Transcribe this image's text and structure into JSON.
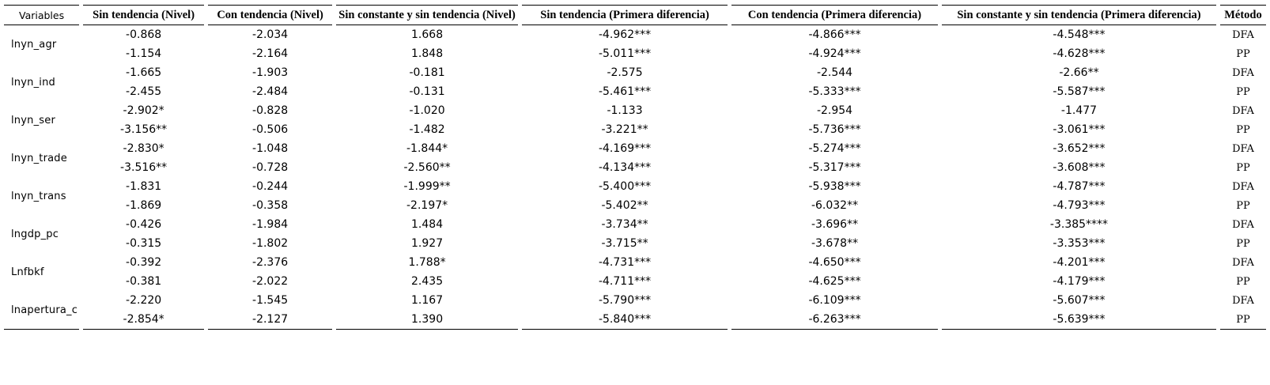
{
  "page": {
    "background_color": "#ffffff",
    "text_color": "#000000"
  },
  "table": {
    "column_headers": [
      "Variables",
      "Sin tendencia (Nivel)",
      "Con tendencia (Nivel)",
      "Sin constante y sin tendencia (Nivel)",
      "Sin tendencia (Primera diferencia)",
      "Con tendencia (Primera diferencia)",
      "Sin constante y sin tendencia (Primera diferencia)",
      "Método"
    ],
    "groups": [
      {
        "variable": "lnyn_agr",
        "rows": [
          {
            "method": "DFA",
            "values": [
              "-0.868",
              "-2.034",
              "1.668",
              "-4.962***",
              "-4.866***",
              "-4.548***"
            ]
          },
          {
            "method": "PP",
            "values": [
              "-1.154",
              "-2.164",
              "1.848",
              "-5.011***",
              "-4.924***",
              "-4.628***"
            ]
          }
        ]
      },
      {
        "variable": "lnyn_ind",
        "rows": [
          {
            "method": "DFA",
            "values": [
              "-1.665",
              "-1.903",
              "-0.181",
              "-2.575",
              "-2.544",
              "-2.66**"
            ]
          },
          {
            "method": "PP",
            "values": [
              "-2.455",
              "-2.484",
              "-0.131",
              "-5.461***",
              "-5.333***",
              "-5.587***"
            ]
          }
        ]
      },
      {
        "variable": "lnyn_ser",
        "rows": [
          {
            "method": "DFA",
            "values": [
              "-2.902*",
              "-0.828",
              "-1.020",
              "-1.133",
              "-2.954",
              "-1.477"
            ]
          },
          {
            "method": "PP",
            "values": [
              "-3.156**",
              "-0.506",
              "-1.482",
              "-3.221**",
              "-5.736***",
              "-3.061***"
            ]
          }
        ]
      },
      {
        "variable": "lnyn_trade",
        "rows": [
          {
            "method": "DFA",
            "values": [
              "-2.830*",
              "-1.048",
              "-1.844*",
              "-4.169***",
              "-5.274***",
              "-3.652***"
            ]
          },
          {
            "method": "PP",
            "values": [
              "-3.516**",
              "-0.728",
              "-2.560**",
              "-4.134***",
              "-5.317***",
              "-3.608***"
            ]
          }
        ]
      },
      {
        "variable": "lnyn_trans",
        "rows": [
          {
            "method": "DFA",
            "values": [
              "-1.831",
              "-0.244",
              "-1.999**",
              "-5.400***",
              "-5.938***",
              "-4.787***"
            ]
          },
          {
            "method": "PP",
            "values": [
              "-1.869",
              "-0.358",
              "-2.197*",
              "-5.402**",
              "-6.032**",
              "-4.793***"
            ]
          }
        ]
      },
      {
        "variable": "lngdp_pc",
        "rows": [
          {
            "method": "DFA",
            "values": [
              "-0.426",
              "-1.984",
              "1.484",
              "-3.734**",
              "-3.696**",
              "-3.385****"
            ]
          },
          {
            "method": "PP",
            "values": [
              "-0.315",
              "-1.802",
              "1.927",
              "-3.715**",
              "-3.678**",
              "-3.353***"
            ]
          }
        ]
      },
      {
        "variable": "Lnfbkf",
        "rows": [
          {
            "method": "DFA",
            "values": [
              "-0.392",
              "-2.376",
              "1.788*",
              "-4.731***",
              "-4.650***",
              "-4.201***"
            ]
          },
          {
            "method": "PP",
            "values": [
              "-0.381",
              "-2.022",
              "2.435",
              "-4.711***",
              "-4.625***",
              "-4.179***"
            ]
          }
        ]
      },
      {
        "variable": "lnapertura_c",
        "rows": [
          {
            "method": "DFA",
            "values": [
              "-2.220",
              "-1.545",
              "1.167",
              "-5.790***",
              "-6.109***",
              "-5.607***"
            ]
          },
          {
            "method": "PP",
            "values": [
              "-2.854*",
              "-2.127",
              "1.390",
              "-5.840***",
              "-6.263***",
              "-5.639***"
            ]
          }
        ]
      }
    ]
  }
}
